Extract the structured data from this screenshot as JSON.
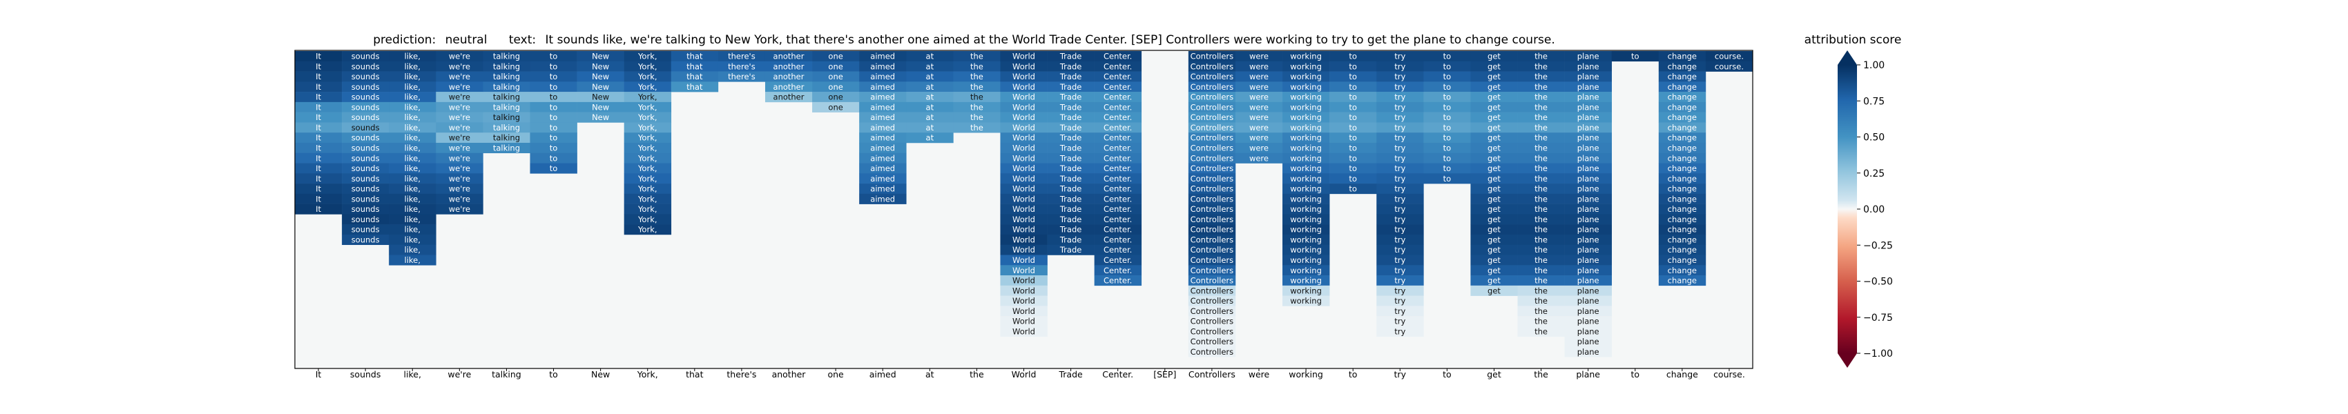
{
  "title": {
    "prediction_label": "prediction:",
    "prediction_value": "neutral",
    "text_label": "text:",
    "text_value": "It sounds like, we're talking to New York, that there's another one aimed at the World Trade Center. [SEP] Controllers were working to try to get the plane to change course."
  },
  "colorbar": {
    "label": "attribution score",
    "ticks": [
      "1.00",
      "0.75",
      "0.50",
      "0.25",
      "0.00",
      "−0.25",
      "−0.50",
      "−0.75",
      "−1.00"
    ],
    "tick_values": [
      1.0,
      0.75,
      0.5,
      0.25,
      0.0,
      -0.25,
      -0.5,
      -0.75,
      -1.0
    ],
    "colormap": "RdBu",
    "extend": "both"
  },
  "colors": {
    "neg_dark": "#67001f",
    "neg_mid": "#d6604d",
    "neutral": "#f7f7f7",
    "pos_mid": "#4393c3",
    "pos_dark": "#053061",
    "background_cell": "#f5f7f7"
  },
  "chart_data": {
    "type": "heatmap",
    "tokens": [
      "It",
      "sounds",
      "like,",
      "we're",
      "talking",
      "to",
      "New",
      "York,",
      "that",
      "there's",
      "another",
      "one",
      "aimed",
      "at",
      "the",
      "World",
      "Trade",
      "Center.",
      "[SEP]",
      "Controllers",
      "were",
      "working",
      "to",
      "try",
      "to",
      "get",
      "the",
      "plane",
      "to",
      "change",
      "course."
    ],
    "row_count": 31,
    "x_tick_labels": [
      "It",
      "sounds",
      "like,",
      "we're",
      "talking",
      "to",
      "New",
      "York,",
      "that",
      "there's",
      "another",
      "one",
      "aimed",
      "at",
      "the",
      "World",
      "Trade",
      "Center.",
      "[SEP]",
      "Controllers",
      "were",
      "working",
      "to",
      "try",
      "to",
      "get",
      "the",
      "plane",
      "to",
      "change",
      "course."
    ],
    "columns": [
      {
        "token": "It",
        "rows": [
          0,
          15
        ],
        "attr": [
          0.96,
          0.93,
          0.9,
          0.87,
          0.82,
          0.55,
          0.5,
          0.45,
          0.6,
          0.65,
          0.72,
          0.8,
          0.85,
          0.9,
          0.93,
          0.95
        ]
      },
      {
        "token": "sounds",
        "rows": [
          0,
          18
        ],
        "attr": [
          0.92,
          0.9,
          0.85,
          0.8,
          0.75,
          0.5,
          0.45,
          0.4,
          0.55,
          0.62,
          0.7,
          0.78,
          0.82,
          0.88,
          0.9,
          0.92,
          0.94,
          0.9,
          0.86
        ]
      },
      {
        "token": "like,",
        "rows": [
          0,
          20
        ],
        "attr": [
          0.92,
          0.9,
          0.85,
          0.8,
          0.75,
          0.5,
          0.45,
          0.42,
          0.55,
          0.62,
          0.7,
          0.76,
          0.82,
          0.86,
          0.9,
          0.92,
          0.93,
          0.9,
          0.88,
          0.85,
          0.8
        ]
      },
      {
        "token": "we're",
        "rows": [
          0,
          15
        ],
        "attr": [
          0.9,
          0.88,
          0.8,
          0.75,
          0.3,
          0.45,
          0.42,
          0.45,
          0.3,
          0.55,
          0.65,
          0.72,
          0.8,
          0.84,
          0.88,
          0.9
        ]
      },
      {
        "token": "talking",
        "rows": [
          0,
          9
        ],
        "attr": [
          0.88,
          0.86,
          0.8,
          0.7,
          0.3,
          0.45,
          0.4,
          0.42,
          0.3,
          0.55
        ]
      },
      {
        "token": "to",
        "rows": [
          0,
          11
        ],
        "attr": [
          0.88,
          0.85,
          0.8,
          0.72,
          0.3,
          0.5,
          0.45,
          0.45,
          0.55,
          0.6,
          0.65,
          0.75
        ]
      },
      {
        "token": "New",
        "rows": [
          0,
          6
        ],
        "attr": [
          0.85,
          0.82,
          0.75,
          0.65,
          0.3,
          0.5,
          0.45
        ]
      },
      {
        "token": "York,",
        "rows": [
          0,
          17
        ],
        "attr": [
          0.9,
          0.88,
          0.82,
          0.75,
          0.35,
          0.5,
          0.45,
          0.42,
          0.55,
          0.6,
          0.62,
          0.7,
          0.75,
          0.8,
          0.85,
          0.87,
          0.9,
          0.92
        ]
      },
      {
        "token": "that",
        "rows": [
          0,
          3
        ],
        "attr": [
          0.8,
          0.75,
          0.65,
          0.5
        ]
      },
      {
        "token": "there's",
        "rows": [
          0,
          2
        ],
        "attr": [
          0.82,
          0.75,
          0.62
        ]
      },
      {
        "token": "another",
        "rows": [
          0,
          4
        ],
        "attr": [
          0.82,
          0.75,
          0.62,
          0.5,
          0.25
        ]
      },
      {
        "token": "one",
        "rows": [
          0,
          5
        ],
        "attr": [
          0.85,
          0.78,
          0.65,
          0.55,
          0.4,
          0.2
        ]
      },
      {
        "token": "aimed",
        "rows": [
          0,
          14
        ],
        "attr": [
          0.9,
          0.86,
          0.78,
          0.65,
          0.45,
          0.5,
          0.45,
          0.42,
          0.52,
          0.55,
          0.6,
          0.66,
          0.72,
          0.8,
          0.85
        ]
      },
      {
        "token": "at",
        "rows": [
          0,
          8
        ],
        "attr": [
          0.88,
          0.84,
          0.76,
          0.62,
          0.42,
          0.5,
          0.45,
          0.42,
          0.5
        ]
      },
      {
        "token": "the",
        "rows": [
          0,
          7
        ],
        "attr": [
          0.86,
          0.82,
          0.72,
          0.6,
          0.4,
          0.48,
          0.45,
          0.42
        ]
      },
      {
        "token": "World",
        "rows": [
          0,
          27
        ],
        "attr": [
          0.92,
          0.9,
          0.82,
          0.72,
          0.5,
          0.55,
          0.5,
          0.45,
          0.6,
          0.62,
          0.65,
          0.72,
          0.78,
          0.82,
          0.86,
          0.88,
          0.9,
          0.92,
          0.94,
          0.9,
          0.75,
          0.55,
          0.2,
          0.1,
          0.05,
          0.03,
          0.02,
          0.02
        ]
      },
      {
        "token": "Trade",
        "rows": [
          0,
          19
        ],
        "attr": [
          0.92,
          0.9,
          0.82,
          0.72,
          0.5,
          0.55,
          0.5,
          0.45,
          0.6,
          0.62,
          0.65,
          0.72,
          0.78,
          0.82,
          0.86,
          0.88,
          0.9,
          0.92,
          0.9,
          0.88
        ]
      },
      {
        "token": "Center.",
        "rows": [
          0,
          22
        ],
        "attr": [
          0.92,
          0.9,
          0.82,
          0.72,
          0.5,
          0.55,
          0.5,
          0.45,
          0.6,
          0.62,
          0.65,
          0.72,
          0.78,
          0.82,
          0.86,
          0.88,
          0.9,
          0.92,
          0.9,
          0.88,
          0.86,
          0.78,
          0.7
        ]
      },
      {
        "token": "[SEP]",
        "rows": [
          0,
          -1
        ],
        "attr": []
      },
      {
        "token": "Controllers",
        "rows": [
          0,
          29
        ],
        "attr": [
          0.92,
          0.9,
          0.82,
          0.72,
          0.5,
          0.55,
          0.5,
          0.45,
          0.6,
          0.62,
          0.65,
          0.72,
          0.78,
          0.82,
          0.86,
          0.88,
          0.9,
          0.92,
          0.9,
          0.88,
          0.86,
          0.78,
          0.7,
          0.1,
          0.05,
          0.03,
          0.02,
          0.02,
          0.02,
          0.02
        ]
      },
      {
        "token": "were",
        "rows": [
          0,
          10
        ],
        "attr": [
          0.9,
          0.86,
          0.78,
          0.66,
          0.45,
          0.5,
          0.45,
          0.42,
          0.52,
          0.58,
          0.62
        ]
      },
      {
        "token": "working",
        "rows": [
          0,
          24
        ],
        "attr": [
          0.9,
          0.88,
          0.82,
          0.72,
          0.5,
          0.55,
          0.5,
          0.45,
          0.6,
          0.62,
          0.65,
          0.72,
          0.78,
          0.82,
          0.86,
          0.88,
          0.9,
          0.92,
          0.9,
          0.88,
          0.86,
          0.8,
          0.72,
          0.1,
          0.05
        ]
      },
      {
        "token": "to",
        "rows": [
          0,
          13
        ],
        "attr": [
          0.9,
          0.86,
          0.78,
          0.66,
          0.45,
          0.5,
          0.45,
          0.42,
          0.52,
          0.58,
          0.62,
          0.7,
          0.76,
          0.84
        ]
      },
      {
        "token": "try",
        "rows": [
          0,
          27
        ],
        "attr": [
          0.9,
          0.88,
          0.82,
          0.72,
          0.5,
          0.55,
          0.5,
          0.45,
          0.6,
          0.62,
          0.65,
          0.72,
          0.78,
          0.82,
          0.86,
          0.88,
          0.9,
          0.92,
          0.9,
          0.88,
          0.86,
          0.8,
          0.72,
          0.1,
          0.05,
          0.03,
          0.02,
          0.02
        ]
      },
      {
        "token": "to",
        "rows": [
          0,
          12
        ],
        "attr": [
          0.9,
          0.86,
          0.78,
          0.66,
          0.45,
          0.5,
          0.45,
          0.42,
          0.52,
          0.58,
          0.62,
          0.7,
          0.78
        ]
      },
      {
        "token": "get",
        "rows": [
          0,
          23
        ],
        "attr": [
          0.9,
          0.88,
          0.82,
          0.72,
          0.5,
          0.55,
          0.5,
          0.45,
          0.6,
          0.62,
          0.65,
          0.72,
          0.78,
          0.82,
          0.86,
          0.88,
          0.9,
          0.92,
          0.9,
          0.88,
          0.86,
          0.8,
          0.72,
          0.12
        ]
      },
      {
        "token": "the",
        "rows": [
          0,
          27
        ],
        "attr": [
          0.9,
          0.88,
          0.82,
          0.72,
          0.5,
          0.55,
          0.5,
          0.45,
          0.6,
          0.62,
          0.65,
          0.72,
          0.78,
          0.82,
          0.86,
          0.88,
          0.9,
          0.92,
          0.9,
          0.88,
          0.86,
          0.8,
          0.72,
          0.1,
          0.05,
          0.03,
          0.02,
          0.02
        ]
      },
      {
        "token": "plane",
        "rows": [
          0,
          29
        ],
        "attr": [
          0.9,
          0.88,
          0.82,
          0.72,
          0.5,
          0.55,
          0.5,
          0.45,
          0.6,
          0.62,
          0.65,
          0.72,
          0.78,
          0.82,
          0.86,
          0.88,
          0.9,
          0.92,
          0.9,
          0.88,
          0.86,
          0.8,
          0.72,
          0.1,
          0.05,
          0.03,
          0.02,
          0.02,
          0.02,
          0.02
        ]
      },
      {
        "token": "to",
        "rows": [
          0,
          0
        ],
        "attr": [
          0.95
        ]
      },
      {
        "token": "change",
        "rows": [
          0,
          22
        ],
        "attr": [
          0.92,
          0.9,
          0.82,
          0.72,
          0.5,
          0.55,
          0.5,
          0.45,
          0.6,
          0.62,
          0.65,
          0.72,
          0.78,
          0.82,
          0.86,
          0.88,
          0.9,
          0.92,
          0.9,
          0.88,
          0.86,
          0.8,
          0.72
        ]
      },
      {
        "token": "course.",
        "rows": [
          0,
          1
        ],
        "attr": [
          0.95,
          0.93
        ]
      }
    ],
    "vmin": -1.0,
    "vmax": 1.0
  }
}
